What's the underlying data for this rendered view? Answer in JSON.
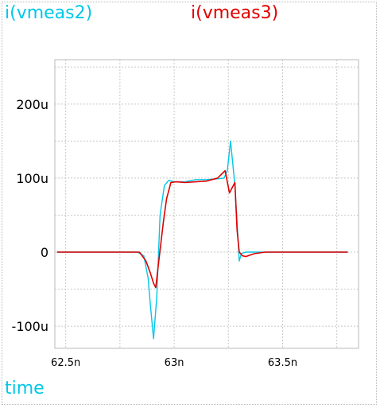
{
  "chart_data": {
    "type": "line",
    "title": "",
    "xlabel": "time",
    "ylabel": "",
    "xlim": [
      62.45,
      63.85
    ],
    "ylim": [
      -130,
      260
    ],
    "grid": true,
    "x_ticks": [
      {
        "value": 62.5,
        "label": "62.5n"
      },
      {
        "value": 63,
        "label": "63n"
      },
      {
        "value": 63.5,
        "label": "63.5n"
      }
    ],
    "y_ticks": [
      {
        "value": -100,
        "label": "-100u"
      },
      {
        "value": 0,
        "label": "0"
      },
      {
        "value": 100,
        "label": "100u"
      },
      {
        "value": 200,
        "label": "200u"
      }
    ],
    "x_unit": "ns",
    "y_unit": "uA",
    "series": [
      {
        "name": "i(vmeas2)",
        "color": "#00c8e8",
        "points": [
          [
            62.46,
            0
          ],
          [
            62.83,
            0
          ],
          [
            62.86,
            -5
          ],
          [
            62.88,
            -35
          ],
          [
            62.89,
            -70
          ],
          [
            62.905,
            -117
          ],
          [
            62.92,
            -60
          ],
          [
            62.935,
            50
          ],
          [
            62.955,
            90
          ],
          [
            62.975,
            97
          ],
          [
            63.0,
            95
          ],
          [
            63.05,
            95
          ],
          [
            63.1,
            98
          ],
          [
            63.15,
            98
          ],
          [
            63.2,
            99
          ],
          [
            63.23,
            100
          ],
          [
            63.245,
            110
          ],
          [
            63.26,
            150
          ],
          [
            63.28,
            90
          ],
          [
            63.29,
            40
          ],
          [
            63.3,
            -12
          ],
          [
            63.31,
            -2
          ],
          [
            63.33,
            0
          ],
          [
            63.4,
            0
          ],
          [
            63.8,
            0
          ]
        ]
      },
      {
        "name": "i(vmeas3)",
        "color": "#e00000",
        "points": [
          [
            62.46,
            0
          ],
          [
            62.84,
            0
          ],
          [
            62.87,
            -12
          ],
          [
            62.89,
            -28
          ],
          [
            62.905,
            -42
          ],
          [
            62.915,
            -48
          ],
          [
            62.93,
            -10
          ],
          [
            62.95,
            40
          ],
          [
            62.965,
            72
          ],
          [
            62.985,
            94
          ],
          [
            63.01,
            95
          ],
          [
            63.05,
            94
          ],
          [
            63.1,
            95
          ],
          [
            63.15,
            96
          ],
          [
            63.2,
            100
          ],
          [
            63.235,
            110
          ],
          [
            63.255,
            80
          ],
          [
            63.28,
            94
          ],
          [
            63.29,
            30
          ],
          [
            63.3,
            0
          ],
          [
            63.315,
            -5
          ],
          [
            63.33,
            -6
          ],
          [
            63.37,
            -2
          ],
          [
            63.42,
            0
          ],
          [
            63.5,
            0
          ],
          [
            63.8,
            0
          ]
        ]
      }
    ]
  }
}
